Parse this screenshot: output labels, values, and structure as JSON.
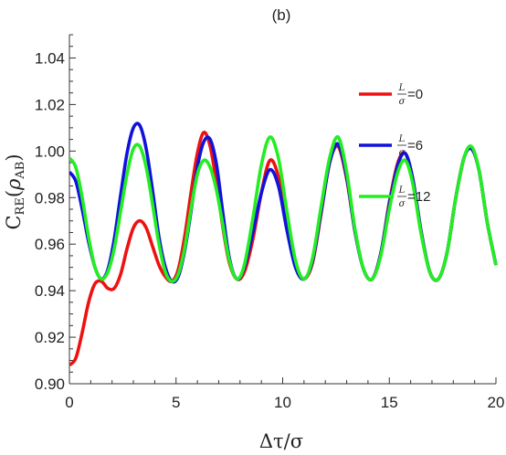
{
  "panel_label": "(b)",
  "chart_data": {
    "type": "line",
    "title": "",
    "xlabel": "Δτ/σ",
    "ylabel": "C_RE(ρ_AB)",
    "ylabel_parts": {
      "main": "C",
      "sub": "RE",
      "arg": "ρ",
      "arg_sub": "AB"
    },
    "xlim": [
      0,
      20
    ],
    "ylim": [
      0.9,
      1.05
    ],
    "x_ticks": [
      0,
      5,
      10,
      15,
      20
    ],
    "x_tick_labels": [
      "0",
      "5",
      "10",
      "15",
      "20"
    ],
    "y_ticks": [
      0.9,
      0.92,
      0.94,
      0.96,
      0.98,
      1.0,
      1.02,
      1.04
    ],
    "y_tick_labels": [
      "0.90",
      "0.92",
      "0.94",
      "0.96",
      "0.98",
      "1.00",
      "1.02",
      "1.04"
    ],
    "grid": false,
    "legend": {
      "position": "right",
      "frac_num": "L",
      "frac_den": "σ",
      "entries": [
        {
          "value_text": "=0",
          "color": "#ee1111"
        },
        {
          "value_text": "=6",
          "color": "#1111dd"
        },
        {
          "value_text": "=12",
          "color": "#22ee22"
        }
      ]
    },
    "series": [
      {
        "color": "#ee1111",
        "legend_value": "L/σ=0",
        "x": [
          0,
          0.3,
          0.6,
          0.9,
          1.2,
          1.5,
          1.8,
          2.1,
          2.4,
          2.7,
          3.0,
          3.3,
          3.6,
          3.9,
          4.2,
          4.5,
          4.8,
          5.1,
          5.4,
          5.7,
          6.0,
          6.3,
          6.6,
          6.9,
          7.2,
          7.5,
          7.85,
          8.2,
          8.6,
          9.0,
          9.4,
          9.8,
          10.2,
          10.6,
          11.0,
          11.4,
          11.8,
          12.2,
          12.6,
          13.0,
          13.4,
          13.8,
          14.2,
          14.6,
          15.0,
          15.4,
          15.75,
          16.1,
          16.5,
          16.9,
          17.3,
          17.7,
          18.1,
          18.5,
          18.85,
          19.2,
          19.6,
          20.0
        ],
        "y": [
          0.908,
          0.911,
          0.922,
          0.935,
          0.943,
          0.944,
          0.941,
          0.941,
          0.947,
          0.958,
          0.967,
          0.97,
          0.967,
          0.959,
          0.951,
          0.946,
          0.944,
          0.949,
          0.963,
          0.982,
          0.999,
          1.008,
          1.002,
          0.986,
          0.967,
          0.952,
          0.945,
          0.948,
          0.962,
          0.982,
          0.996,
          0.989,
          0.969,
          0.951,
          0.945,
          0.952,
          0.973,
          0.995,
          1.002,
          0.988,
          0.965,
          0.949,
          0.945,
          0.956,
          0.978,
          0.995,
          0.999,
          0.988,
          0.965,
          0.948,
          0.945,
          0.956,
          0.979,
          0.997,
          1.001,
          0.992,
          0.969,
          0.951
        ]
      },
      {
        "color": "#1111dd",
        "legend_value": "L/σ=6",
        "x": [
          0,
          0.3,
          0.6,
          0.9,
          1.2,
          1.5,
          1.8,
          2.1,
          2.4,
          2.7,
          3.0,
          3.3,
          3.6,
          3.9,
          4.2,
          4.5,
          4.8,
          5.1,
          5.4,
          5.7,
          6.0,
          6.3,
          6.6,
          6.9,
          7.2,
          7.5,
          7.85,
          8.2,
          8.6,
          9.0,
          9.4,
          9.8,
          10.2,
          10.6,
          11.0,
          11.4,
          11.8,
          12.2,
          12.6,
          13.0,
          13.4,
          13.8,
          14.2,
          14.6,
          15.0,
          15.4,
          15.75,
          16.1,
          16.5,
          16.9,
          17.3,
          17.7,
          18.1,
          18.5,
          18.85,
          19.2,
          19.6,
          20.0
        ],
        "y": [
          0.991,
          0.987,
          0.975,
          0.961,
          0.95,
          0.945,
          0.949,
          0.962,
          0.981,
          0.999,
          1.01,
          1.011,
          1.001,
          0.983,
          0.963,
          0.95,
          0.944,
          0.946,
          0.957,
          0.974,
          0.993,
          1.004,
          1.005,
          0.994,
          0.973,
          0.954,
          0.945,
          0.95,
          0.965,
          0.982,
          0.992,
          0.985,
          0.966,
          0.95,
          0.945,
          0.953,
          0.974,
          0.995,
          1.003,
          0.989,
          0.965,
          0.949,
          0.945,
          0.956,
          0.977,
          0.994,
          0.999,
          0.988,
          0.965,
          0.948,
          0.945,
          0.956,
          0.979,
          0.997,
          1.001,
          0.992,
          0.969,
          0.951
        ]
      },
      {
        "color": "#22ee22",
        "legend_value": "L/σ=12",
        "x": [
          0,
          0.3,
          0.6,
          0.9,
          1.2,
          1.5,
          1.8,
          2.1,
          2.4,
          2.7,
          3.0,
          3.3,
          3.6,
          3.9,
          4.2,
          4.5,
          4.8,
          5.1,
          5.4,
          5.7,
          6.0,
          6.3,
          6.6,
          6.9,
          7.2,
          7.5,
          7.85,
          8.2,
          8.6,
          9.0,
          9.4,
          9.8,
          10.2,
          10.6,
          11.0,
          11.4,
          11.8,
          12.2,
          12.6,
          13.0,
          13.4,
          13.8,
          14.2,
          14.6,
          15.0,
          15.4,
          15.75,
          16.1,
          16.5,
          16.9,
          17.3,
          17.7,
          18.1,
          18.5,
          18.85,
          19.2,
          19.6,
          20.0
        ],
        "y": [
          0.997,
          0.993,
          0.98,
          0.963,
          0.95,
          0.945,
          0.948,
          0.958,
          0.974,
          0.99,
          1.001,
          1.002,
          0.993,
          0.977,
          0.96,
          0.948,
          0.944,
          0.947,
          0.958,
          0.975,
          0.99,
          0.996,
          0.993,
          0.983,
          0.968,
          0.953,
          0.945,
          0.951,
          0.971,
          0.994,
          1.006,
          0.997,
          0.974,
          0.953,
          0.945,
          0.954,
          0.976,
          0.997,
          1.006,
          0.991,
          0.966,
          0.949,
          0.945,
          0.955,
          0.975,
          0.991,
          0.996,
          0.986,
          0.964,
          0.948,
          0.945,
          0.956,
          0.979,
          0.997,
          1.002,
          0.992,
          0.969,
          0.951
        ]
      }
    ]
  }
}
